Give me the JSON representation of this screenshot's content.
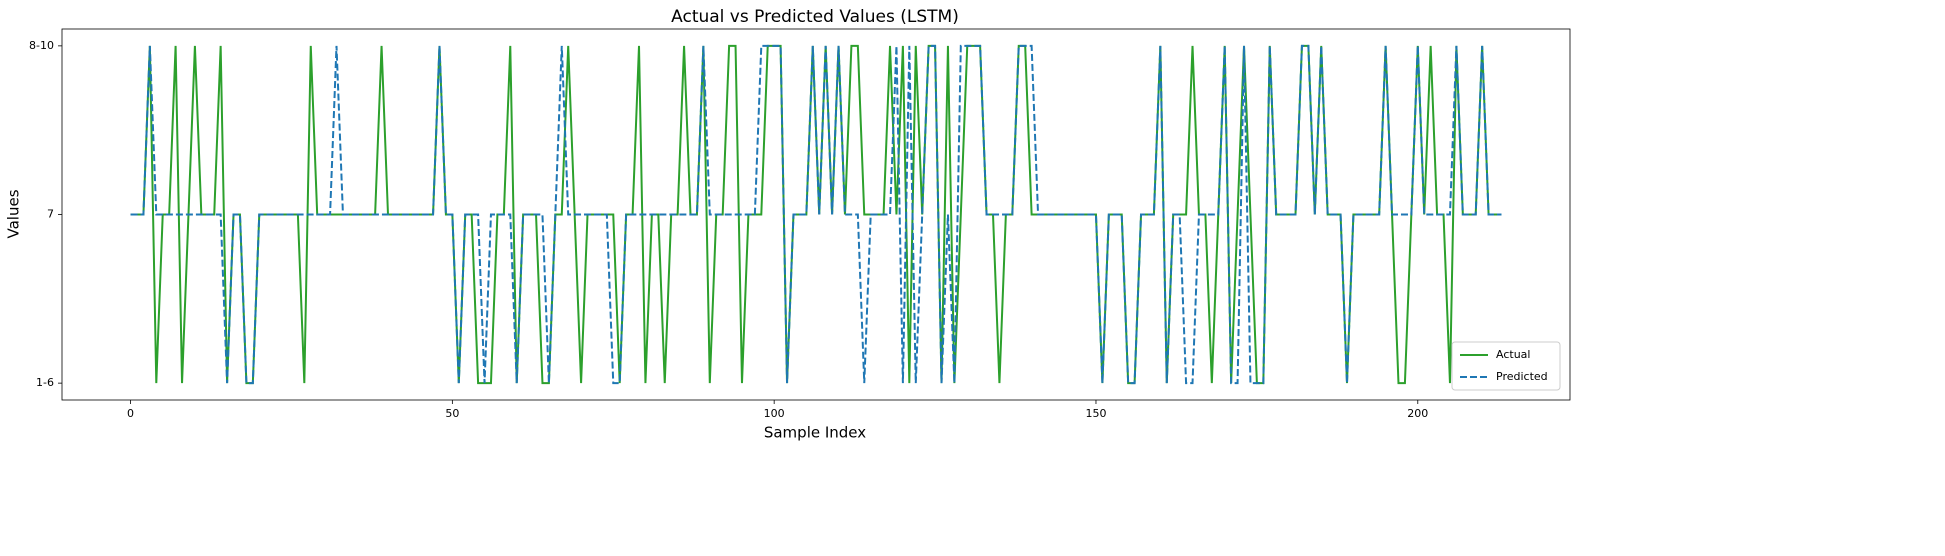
{
  "chart_data": {
    "type": "line",
    "title": "Actual vs Predicted Values (LSTM)",
    "x_label": "Sample Index",
    "y_label": "Values",
    "x": [
      0,
      1,
      2,
      3,
      4,
      5,
      6,
      7,
      8,
      9,
      10,
      11,
      12,
      13,
      14,
      15,
      16,
      17,
      18,
      19,
      20,
      21,
      22,
      23,
      24,
      25,
      26,
      27,
      28,
      29,
      30,
      31,
      32,
      33,
      34,
      35,
      36,
      37,
      38,
      39,
      40,
      41,
      42,
      43,
      44,
      45,
      46,
      47,
      48,
      49,
      50,
      51,
      52,
      53,
      54,
      55,
      56,
      57,
      58,
      59,
      60,
      61,
      62,
      63,
      64,
      65,
      66,
      67,
      68,
      69,
      70,
      71,
      72,
      73,
      74,
      75,
      76,
      77,
      78,
      79,
      80,
      81,
      82,
      83,
      84,
      85,
      86,
      87,
      88,
      89,
      90,
      91,
      92,
      93,
      94,
      95,
      96,
      97,
      98,
      99,
      100,
      101,
      102,
      103,
      104,
      105,
      106,
      107,
      108,
      109,
      110,
      111,
      112,
      113,
      114,
      115,
      116,
      117,
      118,
      119,
      120,
      121,
      122,
      123,
      124,
      125,
      126,
      127,
      128,
      129,
      130,
      131,
      132,
      133,
      134,
      135,
      136,
      137,
      138,
      139,
      140,
      141,
      142,
      143,
      144,
      145,
      146,
      147,
      148,
      149,
      150,
      151,
      152,
      153,
      154,
      155,
      156,
      157,
      158,
      159,
      160,
      161,
      162,
      163,
      164,
      165,
      166,
      167,
      168,
      169,
      170,
      171,
      172,
      173,
      174,
      175,
      176,
      177,
      178,
      179,
      180,
      181,
      182,
      183,
      184,
      185,
      186,
      187,
      188,
      189,
      190,
      191,
      192,
      193,
      194,
      195,
      196,
      197,
      198,
      199,
      200,
      201,
      202,
      203,
      204,
      205,
      206,
      207,
      208,
      209,
      210,
      211,
      212,
      213
    ],
    "series": [
      {
        "name": "Actual",
        "color": "#2ca02c",
        "dash": false,
        "values": [
          1,
          1,
          1,
          2,
          0,
          1,
          1,
          2,
          0,
          1,
          2,
          1,
          1,
          1,
          2,
          0,
          1,
          1,
          0,
          0,
          1,
          1,
          1,
          1,
          1,
          1,
          1,
          0,
          2,
          1,
          1,
          1,
          1,
          1,
          1,
          1,
          1,
          1,
          1,
          2,
          1,
          1,
          1,
          1,
          1,
          1,
          1,
          1,
          2,
          1,
          1,
          0,
          1,
          1,
          0,
          0,
          0,
          1,
          1,
          2,
          0,
          1,
          1,
          1,
          0,
          0,
          1,
          1,
          2,
          1,
          0,
          1,
          1,
          1,
          1,
          1,
          0,
          1,
          1,
          2,
          0,
          1,
          1,
          0,
          1,
          1,
          2,
          1,
          1,
          2,
          0,
          1,
          1,
          2,
          2,
          0,
          1,
          1,
          1,
          2,
          2,
          2,
          0,
          1,
          1,
          1,
          2,
          1,
          2,
          1,
          2,
          1,
          2,
          2,
          1,
          1,
          1,
          1,
          2,
          1,
          2,
          0,
          2,
          1,
          2,
          2,
          0,
          2,
          0,
          1,
          2,
          2,
          2,
          1,
          1,
          0,
          1,
          1,
          2,
          2,
          1,
          1,
          1,
          1,
          1,
          1,
          1,
          1,
          1,
          1,
          1,
          0,
          1,
          1,
          1,
          0,
          0,
          1,
          1,
          1,
          2,
          0,
          1,
          1,
          1,
          2,
          1,
          1,
          0,
          1,
          2,
          0,
          1,
          2,
          1,
          0,
          0,
          2,
          1,
          1,
          1,
          1,
          2,
          2,
          1,
          2,
          1,
          1,
          1,
          0,
          1,
          1,
          1,
          1,
          1,
          2,
          1,
          0,
          0,
          1,
          2,
          1,
          2,
          1,
          1,
          0,
          2,
          1,
          1,
          1,
          2,
          1,
          1,
          1
        ]
      },
      {
        "name": "Predicted",
        "color": "#1f77b4",
        "dash": true,
        "values": [
          1,
          1,
          1,
          2,
          1,
          1,
          1,
          1,
          1,
          1,
          1,
          1,
          1,
          1,
          1,
          0,
          1,
          1,
          0,
          0,
          1,
          1,
          1,
          1,
          1,
          1,
          1,
          1,
          1,
          1,
          1,
          1,
          2,
          1,
          1,
          1,
          1,
          1,
          1,
          1,
          1,
          1,
          1,
          1,
          1,
          1,
          1,
          1,
          2,
          1,
          1,
          0,
          1,
          1,
          1,
          0,
          1,
          1,
          1,
          1,
          0,
          1,
          1,
          1,
          1,
          0,
          1,
          2,
          1,
          1,
          1,
          1,
          1,
          1,
          1,
          0,
          0,
          1,
          1,
          1,
          1,
          1,
          1,
          1,
          1,
          1,
          1,
          1,
          1,
          2,
          1,
          1,
          1,
          1,
          1,
          1,
          1,
          1,
          2,
          2,
          2,
          2,
          0,
          1,
          1,
          1,
          2,
          1,
          2,
          1,
          2,
          1,
          1,
          1,
          0,
          1,
          1,
          1,
          1,
          2,
          0,
          2,
          0,
          1,
          2,
          2,
          0,
          1,
          0,
          2,
          2,
          2,
          2,
          1,
          1,
          1,
          1,
          1,
          2,
          2,
          2,
          1,
          1,
          1,
          1,
          1,
          1,
          1,
          1,
          1,
          1,
          0,
          1,
          1,
          1,
          0,
          0,
          1,
          1,
          1,
          2,
          0,
          1,
          1,
          0,
          0,
          1,
          1,
          1,
          1,
          2,
          0,
          0,
          2,
          0,
          0,
          0,
          2,
          1,
          1,
          1,
          1,
          2,
          2,
          1,
          2,
          1,
          1,
          1,
          0,
          1,
          1,
          1,
          1,
          1,
          2,
          1,
          1,
          1,
          1,
          2,
          1,
          1,
          1,
          1,
          1,
          2,
          1,
          1,
          1,
          2,
          1,
          1,
          1
        ]
      }
    ],
    "xlim": [
      -10.65,
      223.65
    ],
    "xticks": [
      0,
      50,
      100,
      150,
      200
    ],
    "ylim": [
      -0.1,
      2.1
    ],
    "yticks": [
      {
        "value": 0,
        "label": "1-6"
      },
      {
        "value": 1,
        "label": "7"
      },
      {
        "value": 2,
        "label": "8-10"
      }
    ],
    "grid": false,
    "legend": "lower right"
  }
}
